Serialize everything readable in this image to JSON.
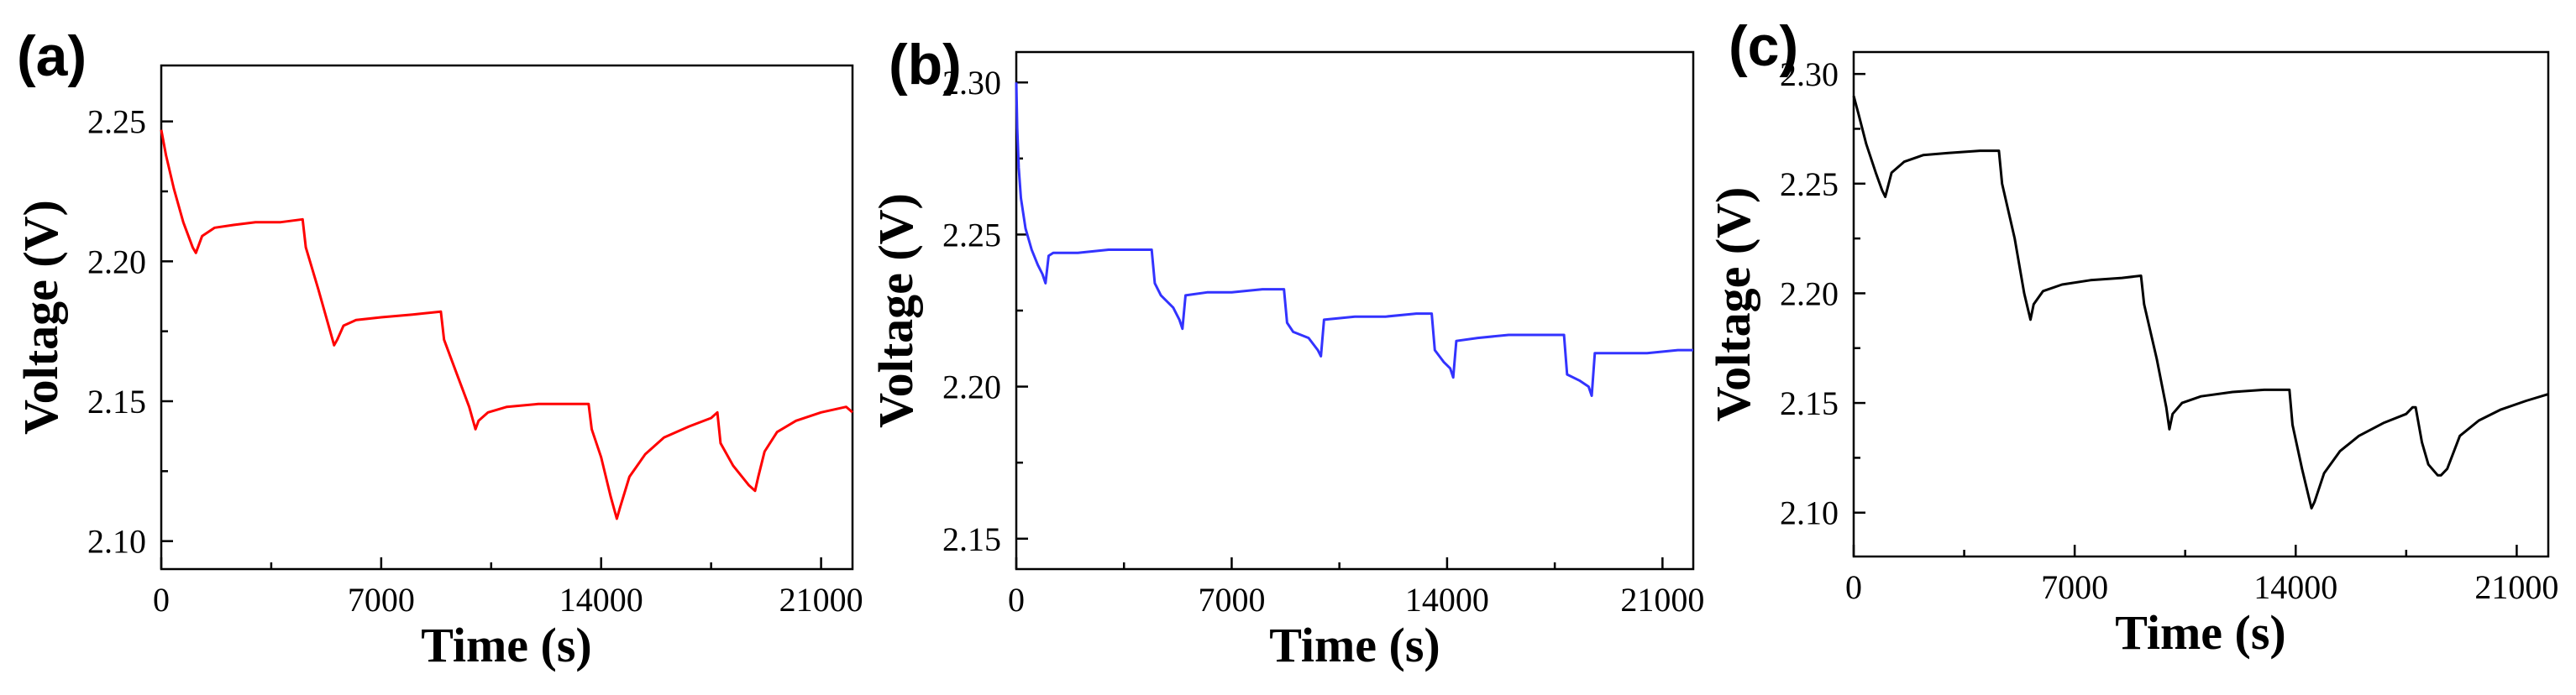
{
  "chart_data": [
    {
      "type": "line",
      "panel_label": "(a)",
      "xlabel": "Time (s)",
      "ylabel": "Voltage (V)",
      "xlim": [
        0,
        22000
      ],
      "ylim": [
        2.09,
        2.27
      ],
      "xticks": [
        0,
        7000,
        14000,
        21000
      ],
      "xtick_labels": [
        "0",
        "7000",
        "14000",
        "21000"
      ],
      "yticks": [
        2.1,
        2.15,
        2.2,
        2.25
      ],
      "ytick_labels": [
        "2.10",
        "2.15",
        "2.20",
        "2.25"
      ],
      "color": "#ff0000",
      "series": [
        {
          "name": "voltage",
          "x": [
            0,
            150,
            400,
            700,
            1000,
            1100,
            1300,
            1700,
            2300,
            3000,
            3800,
            4500,
            4600,
            5000,
            5300,
            5500,
            5600,
            5800,
            6200,
            7000,
            8000,
            8900,
            9000,
            9400,
            9800,
            10000,
            10100,
            10400,
            11000,
            12000,
            13000,
            13600,
            13700,
            14000,
            14300,
            14500,
            14600,
            14900,
            15400,
            16000,
            16800,
            17500,
            17700,
            17800,
            18200,
            18700,
            18900,
            19000,
            19200,
            19600,
            20200,
            21000,
            21800,
            22000
          ],
          "y": [
            2.247,
            2.238,
            2.226,
            2.214,
            2.205,
            2.203,
            2.209,
            2.212,
            2.213,
            2.214,
            2.214,
            2.215,
            2.205,
            2.19,
            2.178,
            2.17,
            2.172,
            2.177,
            2.179,
            2.18,
            2.181,
            2.182,
            2.172,
            2.16,
            2.148,
            2.14,
            2.143,
            2.146,
            2.148,
            2.149,
            2.149,
            2.149,
            2.14,
            2.13,
            2.116,
            2.108,
            2.112,
            2.123,
            2.131,
            2.137,
            2.141,
            2.144,
            2.146,
            2.135,
            2.127,
            2.12,
            2.118,
            2.123,
            2.132,
            2.139,
            2.143,
            2.146,
            2.148,
            2.146
          ]
        }
      ]
    },
    {
      "type": "line",
      "panel_label": "(b)",
      "xlabel": "Time (s)",
      "ylabel": "Voltage (V)",
      "xlim": [
        0,
        22000
      ],
      "ylim": [
        2.14,
        2.31
      ],
      "xticks": [
        0,
        7000,
        14000,
        21000
      ],
      "xtick_labels": [
        "0",
        "7000",
        "14000",
        "21000"
      ],
      "yticks": [
        2.15,
        2.2,
        2.25,
        2.3
      ],
      "ytick_labels": [
        "2.15",
        "2.20",
        "2.25",
        "2.30"
      ],
      "color": "#3333ff",
      "series": [
        {
          "name": "voltage",
          "x": [
            0,
            30,
            80,
            150,
            300,
            500,
            700,
            850,
            950,
            1050,
            1200,
            2000,
            3000,
            4000,
            4400,
            4500,
            4700,
            5100,
            5300,
            5400,
            5500,
            6200,
            7000,
            8000,
            8700,
            8800,
            9000,
            9500,
            9800,
            9900,
            10000,
            11000,
            12000,
            13000,
            13500,
            13600,
            13900,
            14100,
            14200,
            14300,
            15000,
            16000,
            17000,
            17800,
            17900,
            18300,
            18600,
            18700,
            18800,
            19500,
            20500,
            21500,
            22000
          ],
          "y": [
            2.3,
            2.285,
            2.272,
            2.262,
            2.252,
            2.245,
            2.24,
            2.237,
            2.234,
            2.243,
            2.244,
            2.244,
            2.245,
            2.245,
            2.245,
            2.234,
            2.23,
            2.226,
            2.222,
            2.219,
            2.23,
            2.231,
            2.231,
            2.232,
            2.232,
            2.221,
            2.218,
            2.216,
            2.212,
            2.21,
            2.222,
            2.223,
            2.223,
            2.224,
            2.224,
            2.212,
            2.208,
            2.206,
            2.203,
            2.215,
            2.216,
            2.217,
            2.217,
            2.217,
            2.204,
            2.202,
            2.2,
            2.197,
            2.211,
            2.211,
            2.211,
            2.212,
            2.212
          ]
        }
      ]
    },
    {
      "type": "line",
      "panel_label": "(c)",
      "xlabel": "Time (s)",
      "ylabel": "Voltage (V)",
      "xlim": [
        0,
        22000
      ],
      "ylim": [
        2.08,
        2.31
      ],
      "xticks": [
        0,
        7000,
        14000,
        21000
      ],
      "xtick_labels": [
        "0",
        "7000",
        "14000",
        "21000"
      ],
      "yticks": [
        2.1,
        2.15,
        2.2,
        2.25,
        2.3
      ],
      "ytick_labels": [
        "2.10",
        "2.15",
        "2.20",
        "2.25",
        "2.30"
      ],
      "color": "#000000",
      "series": [
        {
          "name": "voltage",
          "x": [
            0,
            150,
            400,
            700,
            900,
            1000,
            1200,
            1600,
            2200,
            3000,
            4000,
            4600,
            4700,
            5100,
            5400,
            5600,
            5700,
            6000,
            6600,
            7500,
            8500,
            9100,
            9200,
            9600,
            9900,
            10000,
            10100,
            10400,
            11000,
            12000,
            13000,
            13800,
            13900,
            14200,
            14400,
            14500,
            14600,
            14900,
            15400,
            16000,
            16800,
            17500,
            17700,
            17800,
            18000,
            18200,
            18500,
            18600,
            18800,
            19200,
            19800,
            20500,
            21300,
            22000
          ],
          "y": [
            2.29,
            2.282,
            2.268,
            2.255,
            2.247,
            2.244,
            2.255,
            2.26,
            2.263,
            2.264,
            2.265,
            2.265,
            2.25,
            2.225,
            2.2,
            2.188,
            2.195,
            2.201,
            2.204,
            2.206,
            2.207,
            2.208,
            2.195,
            2.17,
            2.148,
            2.138,
            2.145,
            2.15,
            2.153,
            2.155,
            2.156,
            2.156,
            2.14,
            2.12,
            2.108,
            2.102,
            2.105,
            2.118,
            2.128,
            2.135,
            2.141,
            2.145,
            2.148,
            2.148,
            2.132,
            2.122,
            2.117,
            2.117,
            2.12,
            2.135,
            2.142,
            2.147,
            2.151,
            2.154
          ]
        }
      ]
    }
  ]
}
